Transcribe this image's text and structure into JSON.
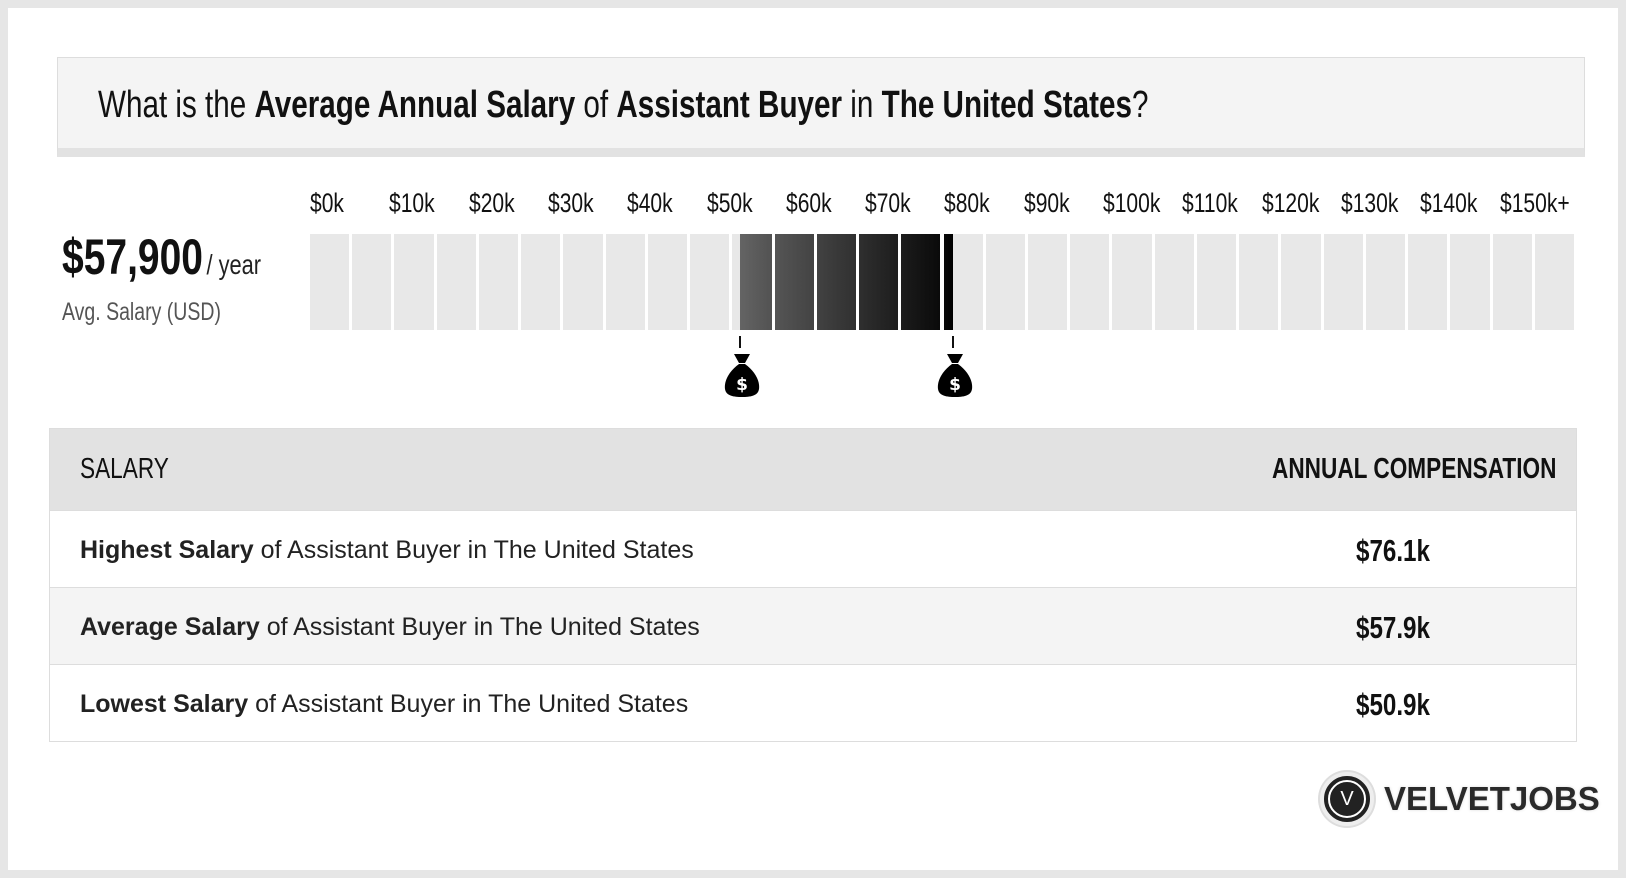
{
  "header": {
    "p1": "What is the ",
    "b1": "Average Annual Salary",
    "p2": " of ",
    "b2": "Assistant Buyer",
    "p3": " in ",
    "b3": "The United States",
    "p4": "?"
  },
  "summary": {
    "value": "$57,900",
    "unit": "/ year",
    "label": "Avg. Salary (USD)"
  },
  "chart_data": {
    "type": "range-bar",
    "tick_labels": [
      "$0k",
      "$10k",
      "$20k",
      "$30k",
      "$40k",
      "$50k",
      "$60k",
      "$70k",
      "$80k",
      "$90k",
      "$100k",
      "$110k",
      "$120k",
      "$130k",
      "$140k",
      "$150k+"
    ],
    "xlim": [
      0,
      150000
    ],
    "low": 50900,
    "average": 57900,
    "high": 76100
  },
  "table": {
    "headers": [
      "SALARY",
      "ANNUAL COMPENSATION"
    ],
    "rows": [
      {
        "bold": "Highest Salary",
        "rest": " of Assistant Buyer in The United States",
        "value": "$76.1k"
      },
      {
        "bold": "Average Salary",
        "rest": " of Assistant Buyer in The United States",
        "value": "$57.9k"
      },
      {
        "bold": "Lowest Salary",
        "rest": " of Assistant Buyer in The United States",
        "value": "$50.9k"
      }
    ]
  },
  "logo": {
    "mark": "V",
    "text": "VELVETJOBS"
  }
}
